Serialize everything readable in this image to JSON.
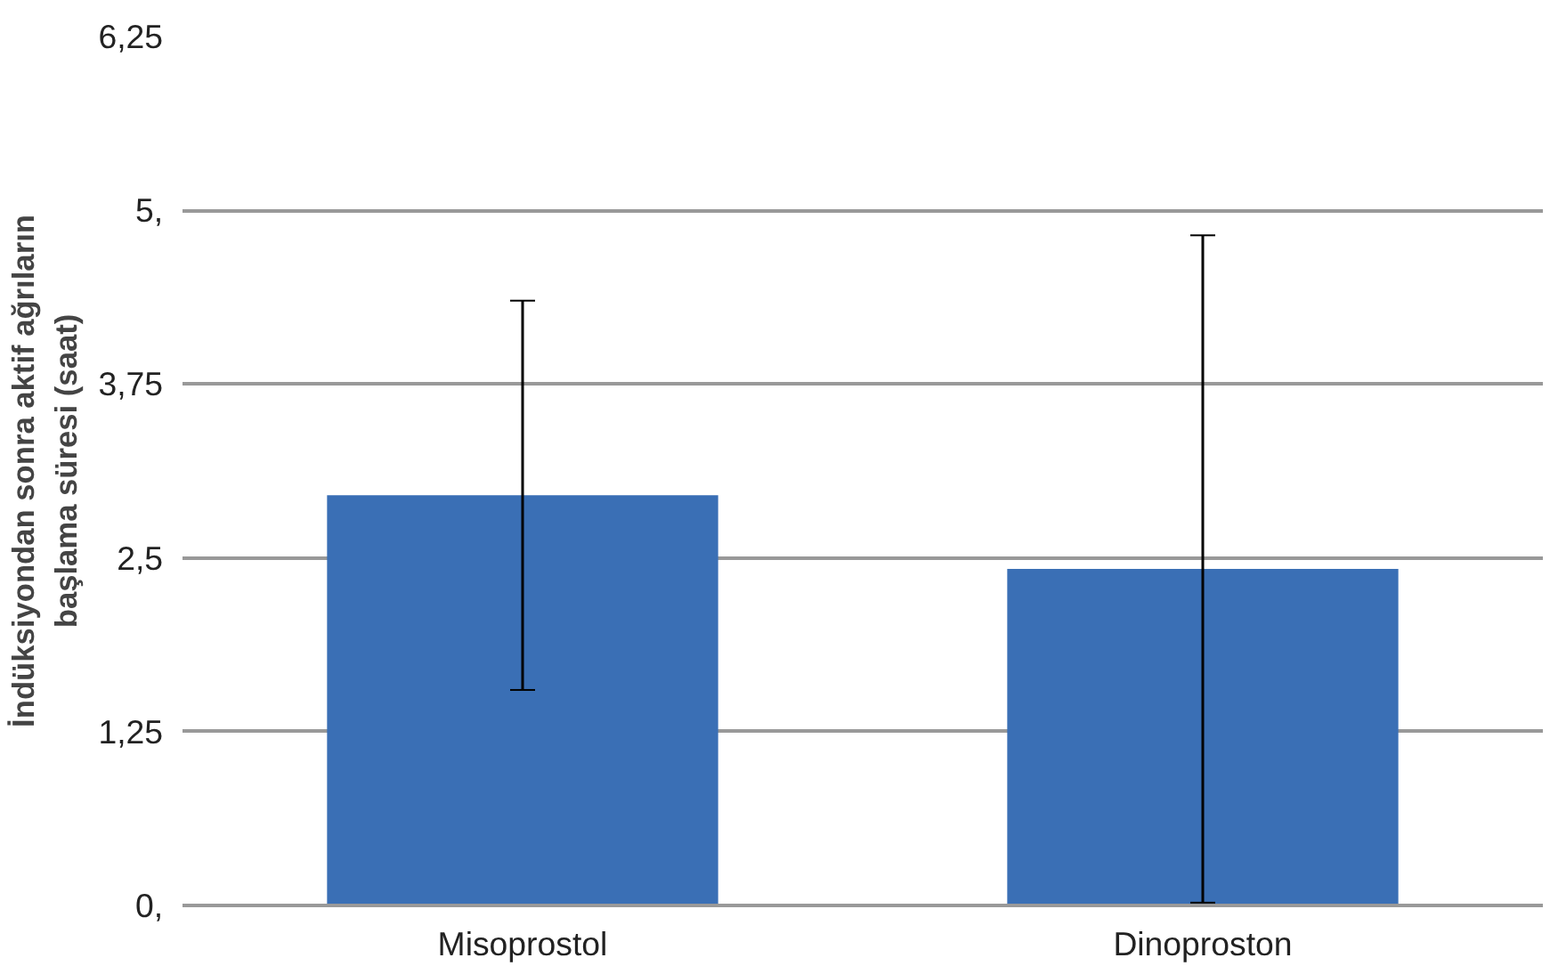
{
  "chart_data": {
    "type": "bar",
    "ylabel": "İndüksiyondan sonra aktif ağrıların\nbaşlama süresi (saat)",
    "categories": [
      "Misoprostol",
      "Dinoproston"
    ],
    "values": [
      2.95,
      2.42
    ],
    "errors": [
      1.4,
      2.4
    ],
    "color": "#3a6fb5",
    "ylim": [
      0,
      6.25
    ],
    "yticks": [
      {
        "value": 0,
        "label": "0,"
      },
      {
        "value": 1.25,
        "label": "1,25"
      },
      {
        "value": 2.5,
        "label": "2,5"
      },
      {
        "value": 3.75,
        "label": "3,75"
      },
      {
        "value": 5,
        "label": "5,"
      },
      {
        "value": 6.25,
        "label": "6,25"
      }
    ],
    "grid": "y"
  }
}
